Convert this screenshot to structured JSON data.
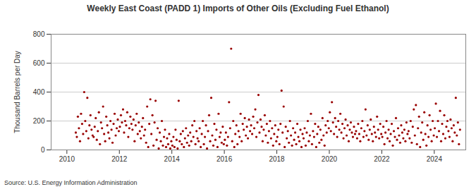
{
  "chart_data": {
    "type": "scatter",
    "title": "Weekly East Coast (PADD 1) Imports of Other Oils (Excluding Fuel Ethanol)",
    "y_label": "Thousand Barrels per Day",
    "source": "Source: U.S. Energy Information Administration",
    "color": "#990000",
    "marker": "circle",
    "grid": true,
    "xlim": [
      2009.4,
      2025.2
    ],
    "xticks": [
      2010,
      2012,
      2014,
      2016,
      2018,
      2020,
      2022,
      2024
    ],
    "ylim": [
      0,
      800
    ],
    "yticks": [
      0,
      200,
      400,
      600,
      800
    ],
    "x": [
      2010.34,
      2010.38,
      2010.42,
      2010.46,
      2010.5,
      2010.54,
      2010.58,
      2010.62,
      2010.66,
      2010.7,
      2010.74,
      2010.78,
      2010.82,
      2010.86,
      2010.9,
      2010.94,
      2010.98,
      2011.02,
      2011.06,
      2011.1,
      2011.14,
      2011.18,
      2011.22,
      2011.26,
      2011.3,
      2011.34,
      2011.38,
      2011.42,
      2011.46,
      2011.5,
      2011.54,
      2011.58,
      2011.62,
      2011.66,
      2011.7,
      2011.74,
      2011.78,
      2011.82,
      2011.86,
      2011.9,
      2011.94,
      2011.98,
      2012.02,
      2012.06,
      2012.1,
      2012.14,
      2012.18,
      2012.22,
      2012.26,
      2012.3,
      2012.34,
      2012.38,
      2012.42,
      2012.46,
      2012.5,
      2012.54,
      2012.58,
      2012.62,
      2012.66,
      2012.7,
      2012.74,
      2012.78,
      2012.82,
      2012.86,
      2012.9,
      2012.94,
      2012.98,
      2013.02,
      2013.06,
      2013.1,
      2013.14,
      2013.18,
      2013.22,
      2013.26,
      2013.3,
      2013.34,
      2013.38,
      2013.42,
      2013.46,
      2013.5,
      2013.54,
      2013.58,
      2013.62,
      2013.66,
      2013.7,
      2013.74,
      2013.78,
      2013.82,
      2013.86,
      2013.9,
      2013.94,
      2013.98,
      2014.02,
      2014.06,
      2014.1,
      2014.14,
      2014.18,
      2014.22,
      2014.26,
      2014.3,
      2014.34,
      2014.38,
      2014.42,
      2014.46,
      2014.5,
      2014.54,
      2014.58,
      2014.62,
      2014.66,
      2014.7,
      2014.74,
      2014.78,
      2014.82,
      2014.86,
      2014.9,
      2014.94,
      2014.98,
      2015.02,
      2015.06,
      2015.1,
      2015.14,
      2015.18,
      2015.22,
      2015.26,
      2015.3,
      2015.34,
      2015.38,
      2015.42,
      2015.46,
      2015.5,
      2015.54,
      2015.58,
      2015.62,
      2015.66,
      2015.7,
      2015.74,
      2015.78,
      2015.82,
      2015.86,
      2015.9,
      2015.94,
      2015.98,
      2016.02,
      2016.06,
      2016.1,
      2016.14,
      2016.18,
      2016.22,
      2016.26,
      2016.3,
      2016.34,
      2016.38,
      2016.42,
      2016.46,
      2016.5,
      2016.54,
      2016.58,
      2016.62,
      2016.66,
      2016.7,
      2016.74,
      2016.78,
      2016.82,
      2016.86,
      2016.9,
      2016.94,
      2016.98,
      2017.02,
      2017.06,
      2017.1,
      2017.14,
      2017.18,
      2017.22,
      2017.26,
      2017.3,
      2017.34,
      2017.38,
      2017.42,
      2017.46,
      2017.5,
      2017.54,
      2017.58,
      2017.62,
      2017.66,
      2017.7,
      2017.74,
      2017.78,
      2017.82,
      2017.86,
      2017.9,
      2017.94,
      2017.98,
      2018.02,
      2018.06,
      2018.1,
      2018.14,
      2018.18,
      2018.22,
      2018.26,
      2018.3,
      2018.34,
      2018.38,
      2018.42,
      2018.46,
      2018.5,
      2018.54,
      2018.58,
      2018.62,
      2018.66,
      2018.7,
      2018.74,
      2018.78,
      2018.82,
      2018.86,
      2018.9,
      2018.94,
      2018.98,
      2019.02,
      2019.06,
      2019.1,
      2019.14,
      2019.18,
      2019.22,
      2019.26,
      2019.3,
      2019.34,
      2019.38,
      2019.42,
      2019.46,
      2019.5,
      2019.54,
      2019.58,
      2019.62,
      2019.66,
      2019.7,
      2019.74,
      2019.78,
      2019.82,
      2019.86,
      2019.9,
      2019.94,
      2019.98,
      2020.02,
      2020.06,
      2020.1,
      2020.14,
      2020.18,
      2020.22,
      2020.26,
      2020.3,
      2020.34,
      2020.38,
      2020.42,
      2020.46,
      2020.5,
      2020.54,
      2020.58,
      2020.62,
      2020.66,
      2020.7,
      2020.74,
      2020.78,
      2020.82,
      2020.86,
      2020.9,
      2020.94,
      2020.98,
      2021.02,
      2021.06,
      2021.1,
      2021.14,
      2021.18,
      2021.22,
      2021.26,
      2021.3,
      2021.34,
      2021.38,
      2021.42,
      2021.46,
      2021.5,
      2021.54,
      2021.58,
      2021.62,
      2021.66,
      2021.7,
      2021.74,
      2021.78,
      2021.82,
      2021.86,
      2021.9,
      2021.94,
      2021.98,
      2022.02,
      2022.06,
      2022.1,
      2022.14,
      2022.18,
      2022.22,
      2022.26,
      2022.3,
      2022.34,
      2022.38,
      2022.42,
      2022.46,
      2022.5,
      2022.54,
      2022.58,
      2022.62,
      2022.66,
      2022.7,
      2022.74,
      2022.78,
      2022.82,
      2022.86,
      2022.9,
      2022.94,
      2022.98,
      2023.02,
      2023.06,
      2023.1,
      2023.14,
      2023.18,
      2023.22,
      2023.26,
      2023.3,
      2023.34,
      2023.38,
      2023.42,
      2023.46,
      2023.5,
      2023.54,
      2023.58,
      2023.62,
      2023.66,
      2023.7,
      2023.74,
      2023.78,
      2023.82,
      2023.86,
      2023.9,
      2023.94,
      2023.98,
      2024.02,
      2024.06,
      2024.1,
      2024.14,
      2024.18,
      2024.22,
      2024.26,
      2024.3,
      2024.34,
      2024.38,
      2024.42,
      2024.46,
      2024.5,
      2024.54,
      2024.58,
      2024.62,
      2024.66,
      2024.7,
      2024.74,
      2024.78,
      2024.82,
      2024.86,
      2024.9,
      2024.94,
      2024.98
    ],
    "values": [
      120,
      90,
      230,
      150,
      60,
      250,
      180,
      110,
      400,
      200,
      130,
      360,
      80,
      170,
      240,
      140,
      100,
      90,
      160,
      220,
      70,
      130,
      260,
      40,
      190,
      150,
      300,
      110,
      60,
      230,
      170,
      120,
      80,
      200,
      140,
      50,
      180,
      250,
      100,
      150,
      210,
      130,
      160,
      240,
      190,
      280,
      120,
      200,
      170,
      260,
      90,
      150,
      230,
      180,
      140,
      210,
      60,
      170,
      250,
      110,
      190,
      130,
      80,
      160,
      220,
      100,
      140,
      50,
      300,
      20,
      180,
      350,
      110,
      240,
      30,
      190,
      340,
      70,
      150,
      10,
      120,
      60,
      200,
      30,
      90,
      140,
      20,
      80,
      40,
      110,
      10,
      60,
      30,
      90,
      20,
      140,
      70,
      10,
      340,
      60,
      110,
      40,
      130,
      20,
      80,
      150,
      50,
      100,
      30,
      120,
      60,
      170,
      90,
      200,
      40,
      130,
      80,
      60,
      150,
      20,
      110,
      200,
      40,
      90,
      170,
      10,
      130,
      240,
      60,
      360,
      100,
      30,
      180,
      70,
      140,
      20,
      250,
      90,
      120,
      50,
      160,
      40,
      70,
      120,
      30,
      90,
      330,
      150,
      700,
      60,
      200,
      20,
      110,
      170,
      40,
      130,
      90,
      250,
      60,
      180,
      140,
      220,
      100,
      160,
      80,
      210,
      130,
      170,
      110,
      230,
      150,
      280,
      90,
      190,
      380,
      120,
      210,
      160,
      60,
      140,
      240,
      100,
      180,
      50,
      130,
      200,
      80,
      150,
      30,
      110,
      170,
      60,
      90,
      140,
      40,
      180,
      410,
      120,
      300,
      20,
      160,
      80,
      130,
      50,
      200,
      100,
      30,
      150,
      70,
      120,
      40,
      180,
      90,
      60,
      140,
      20,
      110,
      80,
      150,
      30,
      120,
      200,
      60,
      100,
      250,
      40,
      130,
      90,
      180,
      20,
      110,
      160,
      50,
      140,
      70,
      220,
      100,
      30,
      170,
      120,
      200,
      150,
      260,
      130,
      330,
      190,
      110,
      220,
      160,
      90,
      200,
      140,
      250,
      120,
      180,
      80,
      150,
      210,
      100,
      170,
      60,
      140,
      190,
      120,
      90,
      160,
      110,
      130,
      80,
      180,
      110,
      60,
      150,
      200,
      90,
      130,
      280,
      100,
      170,
      70,
      140,
      210,
      110,
      60,
      160,
      120,
      90,
      230,
      140,
      80,
      180,
      110,
      90,
      160,
      40,
      120,
      200,
      80,
      140,
      60,
      110,
      180,
      30,
      130,
      90,
      220,
      70,
      150,
      100,
      50,
      170,
      120,
      80,
      140,
      60,
      190,
      110,
      130,
      80,
      200,
      50,
      160,
      280,
      100,
      310,
      40,
      150,
      230,
      20,
      120,
      190,
      70,
      260,
      110,
      30,
      170,
      90,
      240,
      140,
      60,
      200,
      100,
      150,
      320,
      90,
      200,
      130,
      270,
      60,
      180,
      110,
      240,
      80,
      160,
      200,
      130,
      90,
      210,
      150,
      60,
      170,
      120,
      360,
      100,
      190,
      40,
      140
    ]
  }
}
